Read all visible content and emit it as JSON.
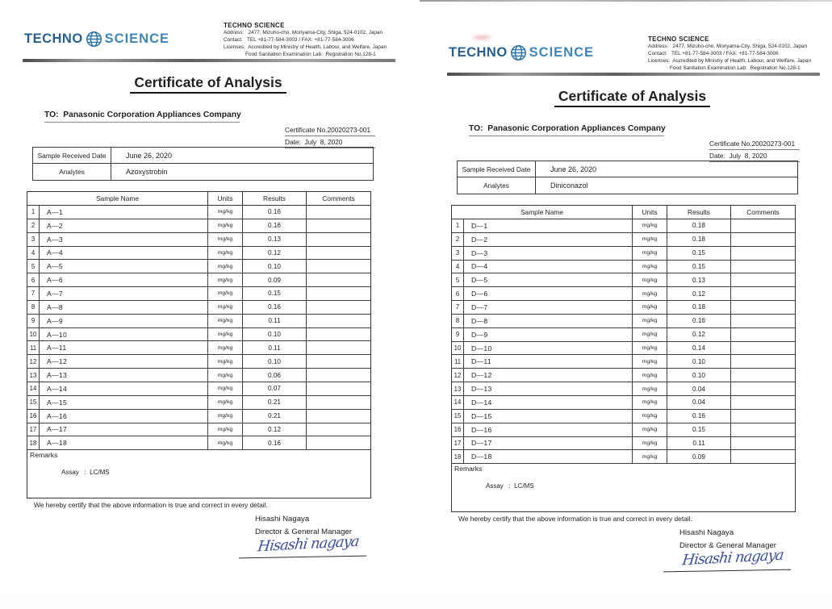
{
  "documents": [
    {
      "logo": {
        "word1": "TECHNO",
        "word2": "SCIENCE"
      },
      "company": {
        "name": "TECHNO SCIENCE",
        "lines": [
          "Address:   2477, Mizuho-cho, Moriyama-City, Shiga, 524-0102, Japan",
          "Contact:   TEL +81-77-584-3003 / FAX: +81-77-584-3006",
          "Licenses:  Accredited by Ministry of Health, Labour, and Welfare, Japan",
          "Food Sanitation Examination Lab:  Registration No.128-1"
        ]
      },
      "title": "Certificate of Analysis",
      "to_line": "TO:  Panasonic Corporation Appliances Company",
      "certificate_no": "Certificate No.20020273-001",
      "date_line": "Date:  July  8, 2020",
      "info": {
        "received_label": "Sample Received Date",
        "received_value": "June 26, 2020",
        "analytes_label": "Analytes",
        "analytes_value": "Azoxystrobin"
      },
      "table": {
        "headers": [
          "Sample Name",
          "Units",
          "Results",
          "Comments"
        ],
        "rows": [
          {
            "no": "1",
            "name": "A—1",
            "units": "mg/kg",
            "result": "0.16",
            "comment": ""
          },
          {
            "no": "2",
            "name": "A—2",
            "units": "mg/kg",
            "result": "0.16",
            "comment": ""
          },
          {
            "no": "3",
            "name": "A—3",
            "units": "mg/kg",
            "result": "0.13",
            "comment": ""
          },
          {
            "no": "4",
            "name": "A—4",
            "units": "mg/kg",
            "result": "0.12",
            "comment": ""
          },
          {
            "no": "5",
            "name": "A—5",
            "units": "mg/kg",
            "result": "0.10",
            "comment": ""
          },
          {
            "no": "6",
            "name": "A—6",
            "units": "mg/kg",
            "result": "0.09",
            "comment": ""
          },
          {
            "no": "7",
            "name": "A—7",
            "units": "mg/kg",
            "result": "0.15",
            "comment": ""
          },
          {
            "no": "8",
            "name": "A—8",
            "units": "mg/kg",
            "result": "0.16",
            "comment": ""
          },
          {
            "no": "9",
            "name": "A—9",
            "units": "mg/kg",
            "result": "0.11",
            "comment": ""
          },
          {
            "no": "10",
            "name": "A—10",
            "units": "mg/kg",
            "result": "0.10",
            "comment": ""
          },
          {
            "no": "11",
            "name": "A—11",
            "units": "mg/kg",
            "result": "0.11",
            "comment": ""
          },
          {
            "no": "12",
            "name": "A—12",
            "units": "mg/kg",
            "result": "0.10",
            "comment": ""
          },
          {
            "no": "13",
            "name": "A—13",
            "units": "mg/kg",
            "result": "0.06",
            "comment": ""
          },
          {
            "no": "14",
            "name": "A—14",
            "units": "mg/kg",
            "result": "0.07",
            "comment": ""
          },
          {
            "no": "15",
            "name": "A—15",
            "units": "mg/kg",
            "result": "0.21",
            "comment": ""
          },
          {
            "no": "16",
            "name": "A—16",
            "units": "mg/kg",
            "result": "0.21",
            "comment": ""
          },
          {
            "no": "17",
            "name": "A—17",
            "units": "mg/kg",
            "result": "0.12",
            "comment": ""
          },
          {
            "no": "18",
            "name": "A—18",
            "units": "mg/kg",
            "result": "0.16",
            "comment": ""
          }
        ]
      },
      "remarks_label": "Remarks",
      "assay_line": "Assay   :  LC/MS",
      "certify_line": "We hereby certify that the above information is true and correct in every detail.",
      "signer_name": "Hisashi Nagaya",
      "signer_title": "Director & General Manager",
      "signature_script": "Hisashi nagaya"
    },
    {
      "logo": {
        "word1": "TECHNO",
        "word2": "SCIENCE"
      },
      "company": {
        "name": "TECHNO SCIENCE",
        "lines": [
          "Address:   2477, Mizuho-cho, Moriyama-City, Shiga, 524-0102, Japan",
          "Contact:   TEL +81-77-584-3003 / FAX: +81-77-584-3006",
          "Licenses:  Accredited by Ministry of Health, Labour, and Welfare, Japan",
          "Food Sanitation Examination Lab:  Registration No.128-1"
        ]
      },
      "title": "Certificate of Analysis",
      "to_line": "TO:  Panasonic Corporation Appliances Company",
      "certificate_no": "Certificate No.20020273-001",
      "date_line": "Date:  July  8, 2020",
      "info": {
        "received_label": "Sample Received Date",
        "received_value": "June 26, 2020",
        "analytes_label": "Analytes",
        "analytes_value": "Diniconazol"
      },
      "table": {
        "headers": [
          "Sample Name",
          "Units",
          "Results",
          "Comments"
        ],
        "rows": [
          {
            "no": "1",
            "name": "D—1",
            "units": "mg/kg",
            "result": "0.18",
            "comment": ""
          },
          {
            "no": "2",
            "name": "D—2",
            "units": "mg/kg",
            "result": "0.18",
            "comment": ""
          },
          {
            "no": "3",
            "name": "D—3",
            "units": "mg/kg",
            "result": "0.15",
            "comment": ""
          },
          {
            "no": "4",
            "name": "D—4",
            "units": "mg/kg",
            "result": "0.15",
            "comment": ""
          },
          {
            "no": "5",
            "name": "D—5",
            "units": "mg/kg",
            "result": "0.13",
            "comment": ""
          },
          {
            "no": "6",
            "name": "D—6",
            "units": "mg/kg",
            "result": "0.12",
            "comment": ""
          },
          {
            "no": "7",
            "name": "D—7",
            "units": "mg/kg",
            "result": "0.18",
            "comment": ""
          },
          {
            "no": "8",
            "name": "D—8",
            "units": "mg/kg",
            "result": "0.16",
            "comment": ""
          },
          {
            "no": "9",
            "name": "D—9",
            "units": "mg/kg",
            "result": "0.12",
            "comment": ""
          },
          {
            "no": "10",
            "name": "D—10",
            "units": "mg/kg",
            "result": "0.14",
            "comment": ""
          },
          {
            "no": "11",
            "name": "D—11",
            "units": "mg/kg",
            "result": "0.10",
            "comment": ""
          },
          {
            "no": "12",
            "name": "D—12",
            "units": "mg/kg",
            "result": "0.10",
            "comment": ""
          },
          {
            "no": "13",
            "name": "D—13",
            "units": "mg/kg",
            "result": "0.04",
            "comment": ""
          },
          {
            "no": "14",
            "name": "D—14",
            "units": "mg/kg",
            "result": "0.04",
            "comment": ""
          },
          {
            "no": "15",
            "name": "D—15",
            "units": "mg/kg",
            "result": "0.16",
            "comment": ""
          },
          {
            "no": "16",
            "name": "D—16",
            "units": "mg/kg",
            "result": "0.15",
            "comment": ""
          },
          {
            "no": "17",
            "name": "D—17",
            "units": "mg/kg",
            "result": "0.11",
            "comment": ""
          },
          {
            "no": "18",
            "name": "D—18",
            "units": "mg/kg",
            "result": "0.09",
            "comment": ""
          }
        ]
      },
      "remarks_label": "Remarks",
      "assay_line": "Assay   :  LC/MS",
      "certify_line": "We hereby certify that the above information is true and correct in every detail.",
      "signer_name": "Hisashi Nagaya",
      "signer_title": "Director & General Manager",
      "signature_script": "Hisashi nagaya"
    }
  ],
  "colors": {
    "logo_dark_blue": "#27608e",
    "logo_light_blue": "#3d86ba",
    "signature_ink": "#3d4fa1"
  }
}
